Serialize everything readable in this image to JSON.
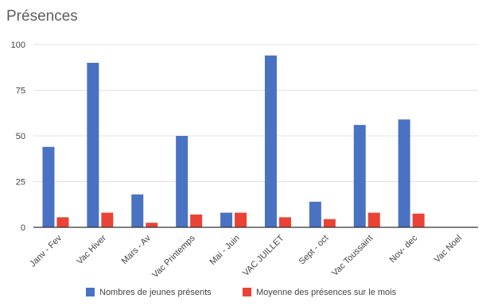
{
  "chart_data": {
    "type": "bar",
    "title": "Présences",
    "categories": [
      "Janv - Fev",
      "Vac Hiver",
      "Mars - Av",
      "Vac Printemps",
      "Mai - Juin",
      "VAC JUILLET",
      "Sept - oct",
      "Vac Toussaint",
      "Nov- dec",
      "Vac Noel"
    ],
    "series": [
      {
        "name": "Nombres de jeunes présents",
        "color": "#4a72c2",
        "values": [
          44,
          90,
          18,
          50,
          8,
          94,
          14,
          56,
          59,
          null
        ]
      },
      {
        "name": "Moyenne des présences sur le mois",
        "color": "#ea4335",
        "values": [
          5.5,
          8,
          2.5,
          7,
          8,
          5.5,
          4.5,
          8,
          7.5,
          null
        ]
      }
    ],
    "ylim": [
      0,
      100
    ],
    "yticks": [
      0,
      25,
      50,
      75,
      100
    ],
    "grid": true,
    "legend_position": "bottom"
  }
}
